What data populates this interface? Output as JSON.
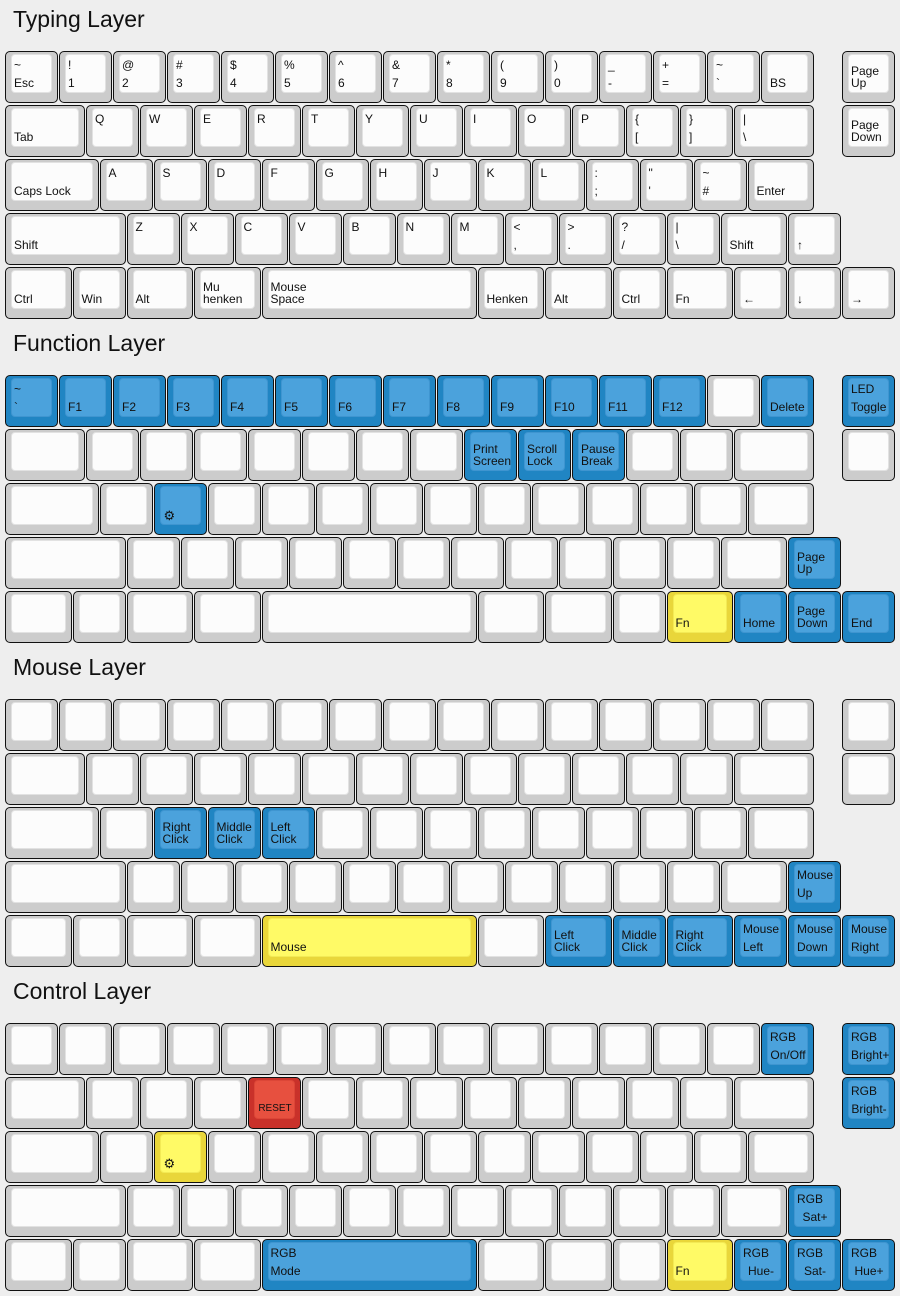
{
  "palette": {
    "background": "#eeeeee",
    "blank": "#fcfcfc",
    "blue": "#4ba2dc",
    "yellow": "#fffa66",
    "red": "#e7503f"
  },
  "layers": [
    {
      "title": "Typing Layer",
      "rows": [
        [
          {
            "t": "~",
            "b": "Esc"
          },
          {
            "t": "!",
            "b": "1"
          },
          {
            "t": "@",
            "b": "2"
          },
          {
            "t": "#",
            "b": "3"
          },
          {
            "t": "$",
            "b": "4"
          },
          {
            "t": "%",
            "b": "5"
          },
          {
            "t": "^",
            "b": "6"
          },
          {
            "t": "&",
            "b": "7"
          },
          {
            "t": "*",
            "b": "8"
          },
          {
            "t": "(",
            "b": "9"
          },
          {
            "t": ")",
            "b": "0"
          },
          {
            "t": "_",
            "b": "-"
          },
          {
            "t": "+",
            "b": "="
          },
          {
            "t": "~",
            "b": "`"
          },
          {
            "b": "BS"
          },
          {
            "b": "Page\nUp"
          }
        ],
        [
          {
            "b": "Tab"
          },
          {
            "t": "Q"
          },
          {
            "t": "W"
          },
          {
            "t": "E"
          },
          {
            "t": "R"
          },
          {
            "t": "T"
          },
          {
            "t": "Y"
          },
          {
            "t": "U"
          },
          {
            "t": "I"
          },
          {
            "t": "O"
          },
          {
            "t": "P"
          },
          {
            "t": "{",
            "b": "["
          },
          {
            "t": "}",
            "b": "]"
          },
          {
            "t": "|",
            "b": "\\"
          },
          {
            "b": "Page\nDown"
          }
        ],
        [
          {
            "b": "Caps Lock"
          },
          {
            "t": "A"
          },
          {
            "t": "S"
          },
          {
            "t": "D"
          },
          {
            "t": "F"
          },
          {
            "t": "G"
          },
          {
            "t": "H"
          },
          {
            "t": "J"
          },
          {
            "t": "K"
          },
          {
            "t": "L"
          },
          {
            "t": ":",
            "b": ";"
          },
          {
            "t": "\"",
            "b": "'"
          },
          {
            "t": "~",
            "b": "#"
          },
          {
            "b": "Enter"
          }
        ],
        [
          {
            "b": "Shift"
          },
          {
            "t": "Z"
          },
          {
            "t": "X"
          },
          {
            "t": "C"
          },
          {
            "t": "V"
          },
          {
            "t": "B"
          },
          {
            "t": "N"
          },
          {
            "t": "M"
          },
          {
            "t": "<",
            "b": ","
          },
          {
            "t": ">",
            "b": "."
          },
          {
            "t": "?",
            "b": "/"
          },
          {
            "t": "|",
            "b": "\\"
          },
          {
            "b": "Shift"
          },
          {
            "b": "↑"
          }
        ],
        [
          {
            "b": "Ctrl"
          },
          {
            "b": "Win"
          },
          {
            "b": "Alt"
          },
          {
            "b": "Mu\nhenken"
          },
          {
            "b": "Mouse\nSpace"
          },
          {
            "b": "Henken"
          },
          {
            "b": "Alt"
          },
          {
            "b": "Ctrl"
          },
          {
            "b": "Fn"
          },
          {
            "b": "←"
          },
          {
            "b": "↓"
          },
          {
            "b": "→"
          }
        ]
      ]
    },
    {
      "title": "Function Layer",
      "rows": [
        [
          {
            "t": "~",
            "b": "`",
            "color": "blue"
          },
          {
            "b": "F1",
            "color": "blue"
          },
          {
            "b": "F2",
            "color": "blue"
          },
          {
            "b": "F3",
            "color": "blue"
          },
          {
            "b": "F4",
            "color": "blue"
          },
          {
            "b": "F5",
            "color": "blue"
          },
          {
            "b": "F6",
            "color": "blue"
          },
          {
            "b": "F7",
            "color": "blue"
          },
          {
            "b": "F8",
            "color": "blue"
          },
          {
            "b": "F9",
            "color": "blue"
          },
          {
            "b": "F10",
            "color": "blue"
          },
          {
            "b": "F11",
            "color": "blue"
          },
          {
            "b": "F12",
            "color": "blue"
          },
          {},
          {
            "b": "Delete",
            "color": "blue"
          },
          {
            "t": "LED",
            "b": "Toggle",
            "color": "blue"
          }
        ],
        [
          {},
          {},
          {},
          {},
          {},
          {},
          {},
          {},
          {
            "b": "Print\nScreen",
            "color": "blue"
          },
          {
            "b": "Scroll\nLock",
            "color": "blue"
          },
          {
            "b": "Pause\nBreak",
            "color": "blue"
          },
          {},
          {},
          {},
          {}
        ],
        [
          {},
          {},
          {
            "icon": "gear",
            "color": "blue"
          },
          {},
          {},
          {},
          {},
          {},
          {},
          {},
          {},
          {},
          {},
          {}
        ],
        [
          {},
          {},
          {},
          {},
          {},
          {},
          {},
          {},
          {},
          {},
          {},
          {},
          {},
          {
            "b": "Page\nUp",
            "color": "blue"
          }
        ],
        [
          {},
          {},
          {},
          {},
          {},
          {},
          {},
          {},
          {
            "b": "Fn",
            "color": "yellow"
          },
          {
            "b": "Home",
            "color": "blue"
          },
          {
            "b": "Page\nDown",
            "color": "blue"
          },
          {
            "b": "End",
            "color": "blue"
          }
        ]
      ]
    },
    {
      "title": "Mouse Layer",
      "rows": [
        [
          {},
          {},
          {},
          {},
          {},
          {},
          {},
          {},
          {},
          {},
          {},
          {},
          {},
          {},
          {},
          {}
        ],
        [
          {},
          {},
          {},
          {},
          {},
          {},
          {},
          {},
          {},
          {},
          {},
          {},
          {},
          {},
          {}
        ],
        [
          {},
          {},
          {
            "b": "Right\nClick",
            "color": "blue"
          },
          {
            "b": "Middle\nClick",
            "color": "blue"
          },
          {
            "b": "Left\nClick",
            "color": "blue"
          },
          {},
          {},
          {},
          {},
          {},
          {},
          {},
          {},
          {}
        ],
        [
          {},
          {},
          {},
          {},
          {},
          {},
          {},
          {},
          {},
          {},
          {},
          {},
          {},
          {
            "t": "Mouse",
            "b": "Up",
            "color": "blue"
          }
        ],
        [
          {},
          {},
          {},
          {},
          {
            "b": "Mouse",
            "color": "yellow"
          },
          {},
          {
            "b": "Left\nClick",
            "color": "blue"
          },
          {
            "b": "Middle\nClick",
            "color": "blue"
          },
          {
            "b": "Right\nClick",
            "color": "blue"
          },
          {
            "t": "Mouse",
            "b": "Left",
            "color": "blue"
          },
          {
            "t": "Mouse",
            "b": "Down",
            "color": "blue"
          },
          {
            "t": "Mouse",
            "b": "Right",
            "color": "blue"
          }
        ]
      ]
    },
    {
      "title": "Control Layer",
      "rows": [
        [
          {},
          {},
          {},
          {},
          {},
          {},
          {},
          {},
          {},
          {},
          {},
          {},
          {},
          {},
          {
            "t": "RGB",
            "b": "On/Off",
            "color": "blue",
            "center": true
          },
          {
            "t": "RGB",
            "b": "Bright+",
            "color": "blue",
            "center": true
          }
        ],
        [
          {},
          {},
          {},
          {},
          {
            "b": "RESET",
            "color": "red",
            "center": true,
            "small": true
          },
          {},
          {},
          {},
          {},
          {},
          {},
          {},
          {},
          {},
          {
            "t": "RGB",
            "b": "Bright-",
            "color": "blue",
            "center": true
          }
        ],
        [
          {},
          {},
          {
            "icon": "gear",
            "color": "yellow"
          },
          {},
          {},
          {},
          {},
          {},
          {},
          {},
          {},
          {},
          {},
          {}
        ],
        [
          {},
          {},
          {},
          {},
          {},
          {},
          {},
          {},
          {},
          {},
          {},
          {},
          {},
          {
            "t": "RGB",
            "b": "Sat+",
            "color": "blue",
            "center": true
          }
        ],
        [
          {},
          {},
          {},
          {},
          {
            "t": "RGB",
            "b": "Mode",
            "color": "blue"
          },
          {},
          {},
          {},
          {
            "b": "Fn",
            "color": "yellow"
          },
          {
            "t": "RGB",
            "b": "Hue-",
            "color": "blue",
            "center": true
          },
          {
            "t": "RGB",
            "b": "Sat-",
            "color": "blue",
            "center": true
          },
          {
            "t": "RGB",
            "b": "Hue+",
            "color": "blue",
            "center": true
          }
        ]
      ]
    }
  ]
}
